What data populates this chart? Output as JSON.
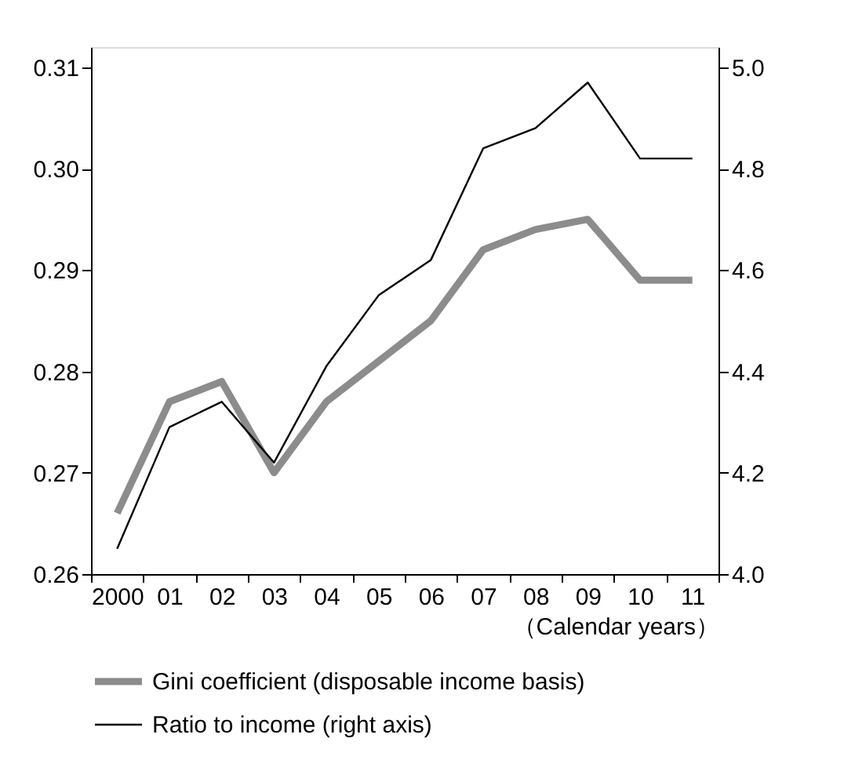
{
  "chart_data": {
    "type": "line",
    "xlabel": "（Calendar years）",
    "categories": [
      "2000",
      "01",
      "02",
      "03",
      "04",
      "05",
      "06",
      "07",
      "08",
      "09",
      "10",
      "11"
    ],
    "series": [
      {
        "name": "Gini coefficient (disposable income basis)",
        "color": "#8c8c8c",
        "values": [
          0.266,
          0.277,
          0.279,
          0.27,
          0.277,
          0.281,
          0.285,
          0.292,
          0.294,
          0.295,
          0.289,
          0.289
        ]
      },
      {
        "name": "Ratio to income (right axis)",
        "color": "#000000",
        "axis": "y2",
        "values": [
          4.05,
          4.29,
          4.34,
          4.22,
          4.41,
          4.55,
          4.62,
          4.84,
          4.88,
          4.97,
          4.82,
          4.82
        ]
      }
    ],
    "ylim": [
      0.26,
      0.312
    ],
    "yticks": [
      0.26,
      0.27,
      0.28,
      0.29,
      {
        "value": 0.3,
        "label": "0.30"
      },
      0.31
    ],
    "y2lim": [
      4.0,
      5.04
    ],
    "y2ticks": [
      {
        "value": 4,
        "label": "4.0"
      },
      4.2,
      4.4,
      4.6,
      4.8,
      {
        "value": 5,
        "label": "5.0"
      }
    ],
    "grid": false,
    "legend": "bottom",
    "marker": "none",
    "line_style": "solid"
  }
}
